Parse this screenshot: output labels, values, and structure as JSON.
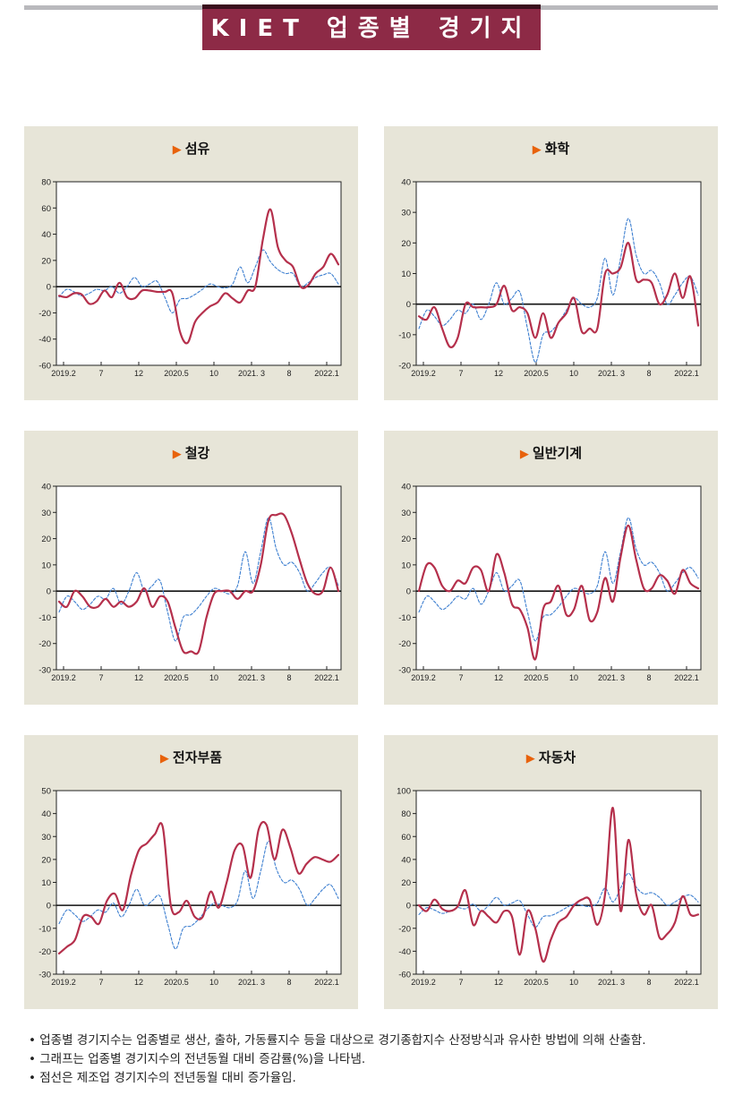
{
  "header": {
    "title": "KIET 업종별 경기지수"
  },
  "chart_data": [
    {
      "type": "line",
      "title": "섬유",
      "x_tick_labels": [
        "2019.2",
        "7",
        "12",
        "2020.5",
        "10",
        "2021. 3",
        "8",
        "2022.1"
      ],
      "ylim": [
        -60,
        80
      ],
      "y_ticks": [
        -60,
        -40,
        -20,
        0,
        20,
        40,
        60,
        80
      ],
      "series": [
        {
          "style": "solid",
          "color": "#b5304c",
          "values": [
            -7,
            -8,
            -5,
            -6,
            -13,
            -11,
            -3,
            -8,
            3,
            -8,
            -9,
            -3,
            -3,
            -4,
            -4,
            -5,
            -34,
            -43,
            -27,
            -20,
            -15,
            -12,
            -5,
            -9,
            -12,
            -3,
            0,
            36,
            59,
            30,
            20,
            15,
            0,
            1,
            10,
            15,
            25,
            17
          ]
        },
        {
          "style": "dashed",
          "color": "#3d7fd0",
          "values": [
            -8,
            -2,
            -4,
            -7,
            -5,
            -2,
            -3,
            0,
            -5,
            0,
            7,
            0,
            2,
            4,
            -8,
            -20,
            -10,
            -9,
            -6,
            -2,
            2,
            0,
            -1,
            2,
            15,
            3,
            15,
            28,
            19,
            13,
            10,
            10,
            0,
            3,
            7,
            9,
            10,
            2
          ]
        }
      ]
    },
    {
      "type": "line",
      "title": "화학",
      "x_tick_labels": [
        "2019.2",
        "7",
        "12",
        "2020.5",
        "10",
        "2021. 3",
        "8",
        "2022.1"
      ],
      "ylim": [
        -20,
        40
      ],
      "y_ticks": [
        -20,
        -10,
        0,
        10,
        20,
        30,
        40
      ],
      "series": [
        {
          "style": "solid",
          "color": "#b5304c",
          "values": [
            -4,
            -5,
            -1,
            -8,
            -14,
            -11,
            0,
            -1,
            -1,
            -1,
            0,
            6,
            -2,
            -1,
            -3,
            -11,
            -3,
            -11,
            -6,
            -3,
            2,
            -9,
            -8,
            -8,
            10,
            10,
            12,
            20,
            8,
            8,
            7,
            0,
            3,
            10,
            2,
            9,
            -7
          ]
        },
        {
          "style": "dashed",
          "color": "#3d7fd0",
          "values": [
            -8,
            -2,
            -4,
            -7,
            -5,
            -2,
            -3,
            0,
            -5,
            0,
            7,
            0,
            2,
            4,
            -8,
            -19,
            -10,
            -9,
            -6,
            -2,
            2,
            0,
            -1,
            2,
            15,
            3,
            15,
            28,
            16,
            10,
            11,
            7,
            0,
            3,
            7,
            9,
            3
          ]
        }
      ]
    },
    {
      "type": "line",
      "title": "철강",
      "x_tick_labels": [
        "2019.2",
        "7",
        "12",
        "2020.5",
        "10",
        "2021. 3",
        "8",
        "2022.1"
      ],
      "ylim": [
        -30,
        40
      ],
      "y_ticks": [
        -30,
        -20,
        -10,
        0,
        10,
        20,
        30,
        40
      ],
      "series": [
        {
          "style": "solid",
          "color": "#b5304c",
          "values": [
            -4,
            -6,
            0,
            -2,
            -6,
            -6,
            -3,
            -6,
            -4,
            -6,
            -4,
            1,
            -6,
            -2,
            -4,
            -14,
            -23,
            -23,
            -23,
            -10,
            -1,
            0,
            0,
            -3,
            0,
            0,
            10,
            27,
            29,
            29,
            22,
            12,
            3,
            -1,
            0,
            9,
            0
          ]
        },
        {
          "style": "dashed",
          "color": "#3d7fd0",
          "values": [
            -8,
            -2,
            -4,
            -7,
            -5,
            -2,
            -3,
            1,
            -5,
            0,
            7,
            0,
            2,
            4,
            -8,
            -19,
            -10,
            -9,
            -6,
            -2,
            1,
            0,
            -1,
            2,
            15,
            3,
            15,
            28,
            16,
            10,
            11,
            7,
            0,
            3,
            7,
            9,
            2
          ]
        }
      ]
    },
    {
      "type": "line",
      "title": "일반기계",
      "x_tick_labels": [
        "2019.2",
        "7",
        "12",
        "2020.5",
        "10",
        "2021. 3",
        "8",
        "2022.1"
      ],
      "ylim": [
        -30,
        40
      ],
      "y_ticks": [
        -30,
        -20,
        -10,
        0,
        10,
        20,
        30,
        40
      ],
      "series": [
        {
          "style": "solid",
          "color": "#b5304c",
          "values": [
            0,
            10,
            9,
            2,
            0,
            4,
            3,
            9,
            8,
            0,
            14,
            7,
            -5,
            -7,
            -14,
            -26,
            -7,
            -4,
            2,
            -9,
            -7,
            2,
            -11,
            -8,
            5,
            -4,
            13,
            25,
            12,
            1,
            1,
            6,
            4,
            -1,
            8,
            3,
            1
          ]
        },
        {
          "style": "dashed",
          "color": "#3d7fd0",
          "values": [
            -8,
            -2,
            -4,
            -7,
            -5,
            -2,
            -3,
            1,
            -5,
            0,
            7,
            0,
            2,
            4,
            -8,
            -19,
            -10,
            -9,
            -6,
            -2,
            1,
            0,
            -1,
            2,
            15,
            3,
            15,
            28,
            16,
            10,
            11,
            7,
            0,
            3,
            7,
            9,
            5
          ]
        }
      ]
    },
    {
      "type": "line",
      "title": "전자부품",
      "x_tick_labels": [
        "2019.2",
        "7",
        "12",
        "2020.5",
        "10",
        "2021. 3",
        "8",
        "2022.1"
      ],
      "ylim": [
        -30,
        50
      ],
      "y_ticks": [
        -30,
        -20,
        -10,
        0,
        10,
        20,
        30,
        40,
        50
      ],
      "series": [
        {
          "style": "solid",
          "color": "#b5304c",
          "values": [
            -21,
            -18,
            -15,
            -5,
            -5,
            -8,
            2,
            5,
            -2,
            13,
            24,
            27,
            31,
            34,
            0,
            -3,
            2,
            -5,
            -5,
            6,
            -1,
            10,
            24,
            26,
            12,
            33,
            35,
            20,
            33,
            25,
            14,
            18,
            21,
            20,
            19,
            22
          ]
        },
        {
          "style": "dashed",
          "color": "#3d7fd0",
          "values": [
            -8,
            -2,
            -4,
            -7,
            -5,
            -2,
            -3,
            1,
            -5,
            0,
            7,
            0,
            2,
            4,
            -8,
            -19,
            -10,
            -9,
            -6,
            -2,
            1,
            0,
            -1,
            2,
            15,
            3,
            15,
            28,
            16,
            10,
            11,
            7,
            0,
            3,
            7,
            9,
            3
          ]
        }
      ]
    },
    {
      "type": "line",
      "title": "자동차",
      "x_tick_labels": [
        "2019.2",
        "7",
        "12",
        "2020.5",
        "10",
        "2021. 3",
        "8",
        "2022.1"
      ],
      "ylim": [
        -60,
        100
      ],
      "y_ticks": [
        -60,
        -40,
        -20,
        0,
        20,
        40,
        60,
        80,
        100
      ],
      "series": [
        {
          "style": "solid",
          "color": "#b5304c",
          "values": [
            0,
            -5,
            5,
            -3,
            -5,
            -1,
            13,
            -17,
            -5,
            -10,
            -15,
            -5,
            -10,
            -43,
            -5,
            -20,
            -49,
            -30,
            -15,
            -10,
            0,
            5,
            5,
            -17,
            10,
            85,
            -5,
            57,
            10,
            -8,
            0,
            -28,
            -25,
            -15,
            8,
            -8,
            -8
          ]
        },
        {
          "style": "dashed",
          "color": "#3d7fd0",
          "values": [
            -8,
            -2,
            -4,
            -7,
            -5,
            -2,
            -3,
            1,
            -5,
            0,
            7,
            0,
            2,
            4,
            -8,
            -19,
            -10,
            -9,
            -6,
            -2,
            1,
            0,
            -1,
            2,
            15,
            3,
            15,
            28,
            16,
            10,
            11,
            7,
            0,
            3,
            7,
            9,
            3
          ]
        }
      ]
    }
  ],
  "notes": [
    "• 업종별 경기지수는 업종별로 생산, 출하, 가동률지수 등을 대상으로 경기종합지수 산정방식과 유사한 방법에 의해 산출함.",
    "• 그래프는 업종별 경기지수의 전년동월 대비 증감률(%)을 나타냄.",
    "• 점선은 제조업 경기지수의 전년동월 대비 증가율임."
  ]
}
